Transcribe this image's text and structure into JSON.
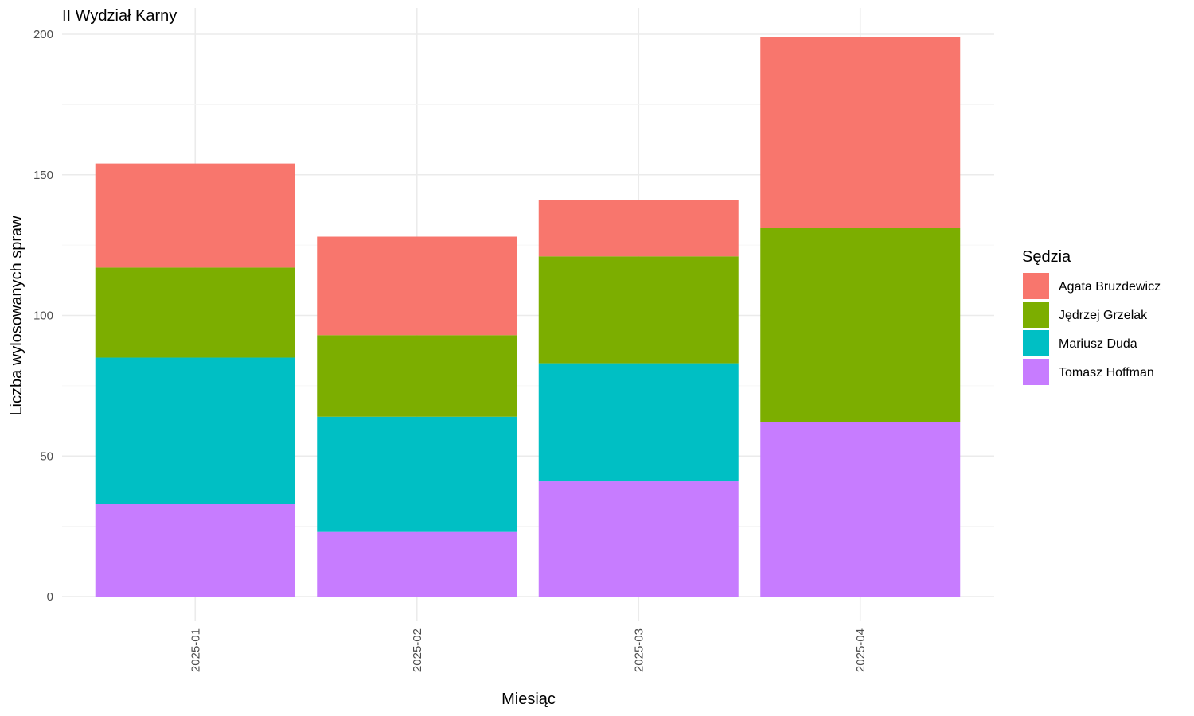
{
  "chart_data": {
    "type": "bar",
    "stacked": true,
    "title": "II Wydział Karny",
    "xlabel": "Miesiąc",
    "ylabel": "Liczba wylosowanych spraw",
    "categories": [
      "2025-01",
      "2025-02",
      "2025-03",
      "2025-04"
    ],
    "y_ticks": [
      "0",
      "50",
      "100",
      "150",
      "200"
    ],
    "ylim": [
      0,
      210
    ],
    "grid": true,
    "legend_title": "Sędzia",
    "legend_position": "right",
    "series": [
      {
        "name": "Tomasz Hoffman",
        "color": "#C77CFF",
        "values": [
          33,
          23,
          41,
          62
        ]
      },
      {
        "name": "Mariusz Duda",
        "color": "#00BFC4",
        "values": [
          52,
          41,
          42,
          0
        ]
      },
      {
        "name": "Jędrzej Grzelak",
        "color": "#7CAE00",
        "values": [
          32,
          29,
          38,
          69
        ]
      },
      {
        "name": "Agata Bruzdewicz",
        "color": "#F8766D",
        "values": [
          37,
          35,
          20,
          68
        ]
      }
    ],
    "legend_order": [
      "Agata Bruzdewicz",
      "Jędrzej Grzelak",
      "Mariusz Duda",
      "Tomasz Hoffman"
    ]
  }
}
